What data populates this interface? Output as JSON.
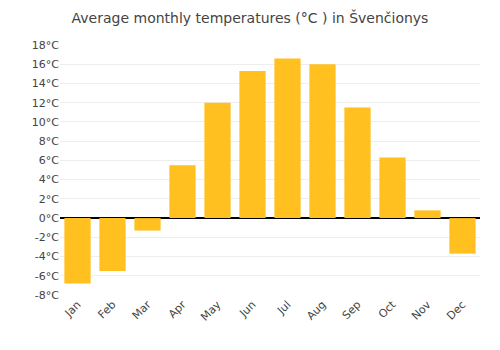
{
  "chart_data": {
    "type": "bar",
    "title": "Average monthly temperatures (°C ) in Švenčionys",
    "categories": [
      "Jan",
      "Feb",
      "Mar",
      "Apr",
      "May",
      "Jun",
      "Jul",
      "Aug",
      "Sep",
      "Oct",
      "Nov",
      "Dec"
    ],
    "values": [
      -6.8,
      -5.5,
      -1.3,
      5.5,
      12.0,
      15.3,
      16.6,
      16.0,
      11.5,
      6.3,
      0.8,
      -3.7
    ],
    "color": "#FFC020",
    "ylim": [
      -8,
      18
    ],
    "yticks": [
      {
        "value": -8,
        "label": "-8°C"
      },
      {
        "value": -6,
        "label": "-6°C"
      },
      {
        "value": -4,
        "label": "-4°C"
      },
      {
        "value": -2,
        "label": "-2°C"
      },
      {
        "value": 0,
        "label": "0°C"
      },
      {
        "value": 2,
        "label": "2°C"
      },
      {
        "value": 4,
        "label": "4°C"
      },
      {
        "value": 6,
        "label": "6°C"
      },
      {
        "value": 8,
        "label": "8°C"
      },
      {
        "value": 10,
        "label": "10°C"
      },
      {
        "value": 12,
        "label": "12°C"
      },
      {
        "value": 14,
        "label": "14°C"
      },
      {
        "value": 16,
        "label": "16°C"
      },
      {
        "value": 18,
        "label": "18°C"
      }
    ],
    "grid": true
  }
}
